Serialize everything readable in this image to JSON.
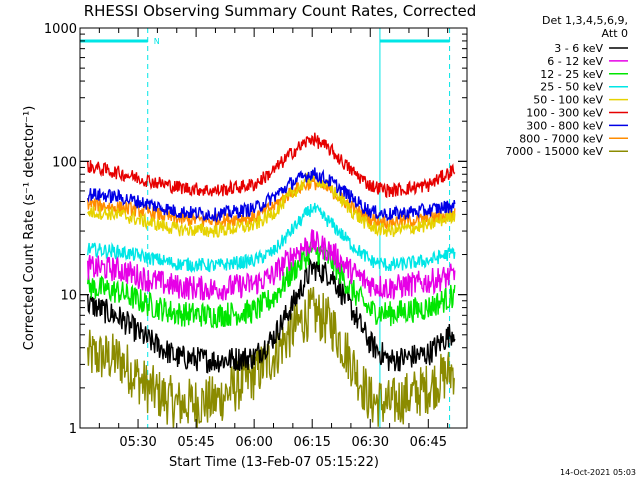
{
  "chart_data": {
    "type": "line",
    "title": "RHESSI Observing Summary Count Rates, Corrected",
    "xlabel": "Start Time (13-Feb-07 05:15:22)",
    "ylabel": "Corrected Count Rate (s⁻¹ detector⁻¹)",
    "yscale": "log",
    "ylim": [
      1,
      1000
    ],
    "xlim_minutes_after_0515": [
      0,
      100
    ],
    "x_ticks": [
      {
        "minute": 15,
        "label": "05:30"
      },
      {
        "minute": 30,
        "label": "05:45"
      },
      {
        "minute": 45,
        "label": "06:00"
      },
      {
        "minute": 60,
        "label": "06:15"
      },
      {
        "minute": 75,
        "label": "06:30"
      },
      {
        "minute": 90,
        "label": "06:45"
      }
    ],
    "y_ticks": [
      {
        "value": 1,
        "label": "1"
      },
      {
        "value": 10,
        "label": "10"
      },
      {
        "value": 100,
        "label": "100"
      },
      {
        "value": 1000,
        "label": "1000"
      }
    ],
    "legend_header": [
      "Det 1,3,4,5,6,9,",
      "Att 0"
    ],
    "legend_position": "top-right, outside plot",
    "annotations": {
      "night_marker": "N",
      "saa_boundary_minutes": [
        17.5,
        77.5,
        95.5
      ]
    },
    "series": [
      {
        "name": "3 - 6 keV",
        "color": "#000000",
        "x": [
          2,
          10,
          17.5,
          25,
          35,
          45,
          50,
          55,
          60,
          65,
          70,
          75,
          80,
          90,
          97
        ],
        "y": [
          8.6,
          6.8,
          4.6,
          3.4,
          3.2,
          3.4,
          4.8,
          8.5,
          16,
          14,
          8,
          4.3,
          3.2,
          3.6,
          5.5
        ]
      },
      {
        "name": "6 - 12 keV",
        "color": "#e600e6",
        "x": [
          2,
          10,
          17.5,
          25,
          35,
          45,
          50,
          55,
          60,
          65,
          70,
          75,
          80,
          90,
          97
        ],
        "y": [
          16,
          15.5,
          13,
          11.5,
          11,
          12,
          14,
          20,
          25,
          21,
          15,
          12,
          11.2,
          12.5,
          14
        ]
      },
      {
        "name": "12 - 25 keV",
        "color": "#00e600",
        "x": [
          2,
          10,
          17.5,
          25,
          35,
          45,
          50,
          55,
          60,
          65,
          70,
          75,
          80,
          90,
          97
        ],
        "y": [
          11.5,
          10.5,
          8.5,
          7.2,
          7.0,
          7.5,
          9.5,
          15,
          22,
          18,
          11,
          7.6,
          7.2,
          8,
          10
        ]
      },
      {
        "name": "25 - 50 keV",
        "color": "#00e6e6",
        "x": [
          2,
          10,
          17.5,
          25,
          35,
          45,
          50,
          55,
          60,
          65,
          70,
          75,
          80,
          90,
          97
        ],
        "y": [
          22,
          21,
          19,
          17,
          16.5,
          18,
          21,
          31,
          45,
          34,
          24,
          18,
          16.5,
          18,
          21
        ]
      },
      {
        "name": "50 - 100 keV",
        "color": "#e6d200",
        "x": [
          2,
          10,
          17.5,
          25,
          35,
          45,
          50,
          55,
          60,
          65,
          70,
          75,
          80,
          90,
          97
        ],
        "y": [
          42,
          40,
          35,
          31,
          30,
          33,
          41,
          58,
          78,
          62,
          43,
          32,
          30,
          33,
          40
        ]
      },
      {
        "name": "100 - 300 keV",
        "color": "#e60000",
        "x": [
          2,
          10,
          17.5,
          25,
          35,
          45,
          50,
          55,
          60,
          65,
          70,
          75,
          80,
          90,
          97
        ],
        "y": [
          92,
          82,
          72,
          64,
          60,
          67,
          85,
          118,
          150,
          120,
          86,
          66,
          60,
          66,
          88
        ]
      },
      {
        "name": "300 - 800 keV",
        "color": "#0000e6",
        "x": [
          2,
          10,
          17.5,
          25,
          35,
          45,
          50,
          55,
          60,
          65,
          70,
          75,
          80,
          90,
          97
        ],
        "y": [
          57,
          54,
          48,
          42,
          40,
          44,
          54,
          70,
          82,
          70,
          54,
          42,
          40,
          43,
          47
        ]
      },
      {
        "name": "800 - 7000 keV",
        "color": "#ff8c00",
        "x": [
          2,
          10,
          17.5,
          25,
          35,
          45,
          50,
          55,
          60,
          65,
          70,
          75,
          80,
          90,
          97
        ],
        "y": [
          48,
          45,
          42,
          37,
          36,
          38,
          46,
          60,
          70,
          60,
          46,
          37,
          35,
          37,
          40
        ]
      },
      {
        "name": "7000 - 15000 keV",
        "color": "#8b8b00",
        "x": [
          2,
          10,
          17.5,
          25,
          35,
          45,
          50,
          55,
          60,
          65,
          70,
          75,
          80,
          90,
          97
        ],
        "y": [
          3.5,
          3.3,
          2.0,
          1.5,
          1.6,
          2.5,
          3.5,
          5.5,
          7.5,
          6,
          3.2,
          1.6,
          1.5,
          2.0,
          2.8
        ]
      }
    ]
  },
  "timestamp": "14-Oct-2021 05:03"
}
